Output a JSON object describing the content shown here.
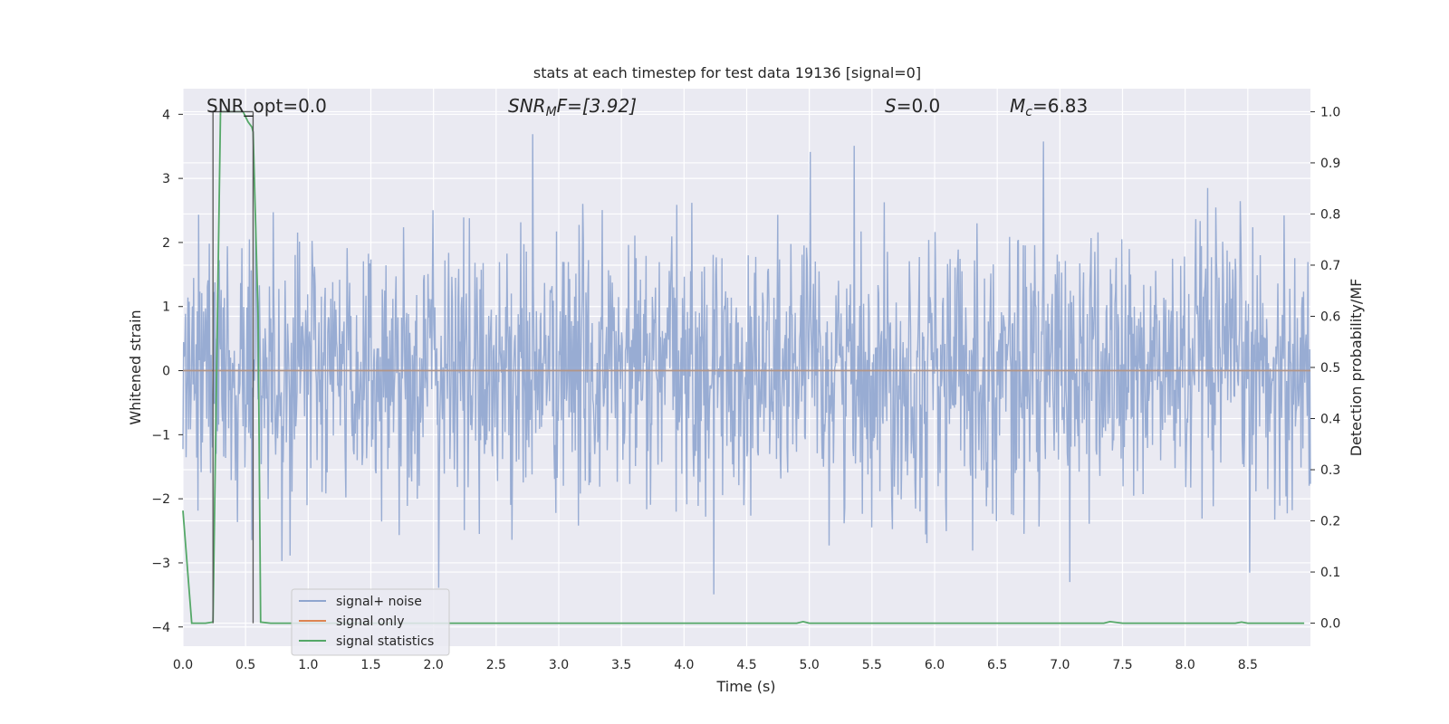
{
  "chart_data": {
    "type": "line",
    "title": "stats at each timestep for test data 19136 [signal=0]",
    "xlabel": "Time (s)",
    "ylabel": "Whitened strain",
    "y2label": "Detection probability/MF",
    "xlim": [
      0.0,
      9.0
    ],
    "ylim": [
      -4.3,
      4.4
    ],
    "y2lim": [
      -0.045,
      1.045
    ],
    "x_ticks": [
      "0.0",
      "0.5",
      "1.0",
      "1.5",
      "2.0",
      "2.5",
      "3.0",
      "3.5",
      "4.0",
      "4.5",
      "5.0",
      "5.5",
      "6.0",
      "6.5",
      "7.0",
      "7.5",
      "8.0",
      "8.5"
    ],
    "y_ticks": [
      "4",
      "3",
      "2",
      "1",
      "0",
      "−1",
      "−2",
      "−3",
      "−4"
    ],
    "y2_ticks": [
      "1.0",
      "0.9",
      "0.8",
      "0.7",
      "0.6",
      "0.5",
      "0.4",
      "0.3",
      "0.2",
      "0.1",
      "0.0"
    ],
    "grid": true,
    "legend_position": "lower-left",
    "colors": {
      "noise": "#8fa5cf",
      "signal": "#dd8452",
      "stats": "#55a868",
      "marker": "#555555",
      "plot_bg": "#eaeaf2",
      "grid": "#ffffff"
    },
    "annotations": {
      "snr_opt": "SNR_opt=0.0",
      "snr_mf_label": "SNR",
      "snr_mf_sub": "M",
      "snr_mf_tail": "F=[3.92]",
      "s_label": "S",
      "s_value": "=0.0",
      "mc_label": "M",
      "mc_sub": "c",
      "mc_value": "=6.83"
    },
    "series": [
      {
        "name": "signal+ noise",
        "description_values": "whitened noise, roughly N(0,1), x from 0 to 9 s",
        "noise_range": [
          -3.9,
          4.0
        ]
      },
      {
        "name": "signal only",
        "values_constant": 0.0
      },
      {
        "name": "signal statistics",
        "x": [
          0.0,
          0.07,
          0.12,
          0.18,
          0.24,
          0.26,
          0.3,
          0.48,
          0.52,
          0.55,
          0.56,
          0.6,
          0.62,
          0.7,
          1.0,
          2.0,
          3.0,
          4.0,
          4.9,
          4.95,
          5.0,
          6.0,
          7.0,
          7.35,
          7.4,
          7.5,
          8.0,
          8.4,
          8.45,
          8.5,
          8.95
        ],
        "y2": [
          0.22,
          0.0,
          0.0,
          0.0,
          0.002,
          0.35,
          1.0,
          1.0,
          0.98,
          0.97,
          0.96,
          0.6,
          0.002,
          0.0,
          0.0,
          0.0,
          0.0,
          0.0,
          0.0,
          0.003,
          0.0,
          0.0,
          0.0,
          0.0,
          0.003,
          0.0,
          0.0,
          0.0,
          0.002,
          0.0,
          0.0
        ]
      }
    ],
    "marker_lines": [
      0.24,
      0.56
    ]
  },
  "legend": [
    {
      "label": "signal+ noise",
      "color": "#8fa5cf"
    },
    {
      "label": "signal only",
      "color": "#dd8452"
    },
    {
      "label": "signal statistics",
      "color": "#55a868"
    }
  ]
}
